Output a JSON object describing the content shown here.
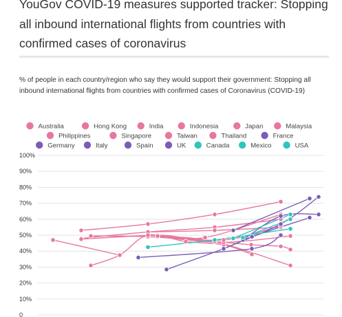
{
  "page": {
    "title": "YouGov COVID-19 measures supported tracker: Stopping all inbound international flights from countries with confirmed cases of coronavirus",
    "description": "% of people in each country/region who say they would support their government: Stopping all inbound international flights from countries with confirmed cases of Coronavirus (COVID-19)"
  },
  "chart_data": {
    "type": "line",
    "ylim": [
      0,
      100
    ],
    "y_ticks": [
      {
        "value": 100,
        "label": "100%"
      },
      {
        "value": 90,
        "label": "90%"
      },
      {
        "value": 80,
        "label": "80%"
      },
      {
        "value": 70,
        "label": "70%"
      },
      {
        "value": 60,
        "label": "60%"
      },
      {
        "value": 50,
        "label": "50%"
      },
      {
        "value": 40,
        "label": "40%"
      },
      {
        "value": 30,
        "label": "30%"
      },
      {
        "value": 20,
        "label": "20%"
      },
      {
        "value": 10,
        "label": "10%"
      },
      {
        "value": 0,
        "label": "0"
      }
    ],
    "grid": true,
    "legend_position": "top",
    "series": [
      {
        "name": "Australia",
        "color": "#e8779f",
        "points": [
          [
            118,
            53
          ],
          [
            215,
            57
          ],
          [
            312,
            63
          ],
          [
            408,
            71
          ]
        ]
      },
      {
        "name": "Hong Kong",
        "color": "#e8779f",
        "points": [
          [
            132,
            49.5
          ],
          [
            215,
            49
          ],
          [
            312,
            46
          ],
          [
            365,
            44
          ],
          [
            408,
            43
          ],
          [
            422,
            41
          ]
        ]
      },
      {
        "name": "India",
        "color": "#e8779f",
        "points": [
          [
            118,
            48
          ],
          [
            215,
            52
          ],
          [
            312,
            55
          ],
          [
            408,
            60
          ]
        ]
      },
      {
        "name": "Indonesia",
        "color": "#e8779f",
        "points": [
          [
            132,
            31
          ],
          [
            174,
            37.5
          ],
          [
            215,
            50
          ],
          [
            270,
            46
          ],
          [
            325,
            44
          ],
          [
            366,
            38
          ]
        ]
      },
      {
        "name": "Japan",
        "color": "#e8779f",
        "points": [
          [
            215,
            52
          ],
          [
            312,
            53
          ],
          [
            408,
            55
          ]
        ]
      },
      {
        "name": "Malaysia",
        "color": "#e8779f",
        "points": [
          [
            118,
            47.5
          ],
          [
            229,
            50
          ],
          [
            298,
            48.5
          ],
          [
            408,
            63
          ]
        ]
      },
      {
        "name": "Philippines",
        "color": "#e8779f",
        "points": [
          [
            229,
            49
          ],
          [
            325,
            45.5
          ],
          [
            422,
            49.5
          ]
        ]
      },
      {
        "name": "Singapore",
        "color": "#e8779f",
        "points": [
          [
            77,
            47
          ],
          [
            174,
            37.5
          ]
        ]
      },
      {
        "name": "Taiwan",
        "color": "#e8779f",
        "points": [
          [
            229,
            49.5
          ],
          [
            312,
            46
          ],
          [
            422,
            31
          ]
        ]
      },
      {
        "name": "Thailand",
        "color": "#e8779f",
        "points": [
          [
            215,
            50
          ],
          [
            325,
            47
          ],
          [
            408,
            56
          ]
        ]
      },
      {
        "name": "France",
        "color": "#7b5cb8",
        "points": [
          [
            339,
            53
          ],
          [
            450,
            73
          ]
        ]
      },
      {
        "name": "Germany",
        "color": "#7b5cb8",
        "points": [
          [
            325,
            41.5
          ],
          [
            408,
            57
          ],
          [
            463,
            74
          ]
        ]
      },
      {
        "name": "Italy",
        "color": "#7b5cb8",
        "points": [
          [
            242,
            28.5
          ],
          [
            325,
            41.5
          ],
          [
            366,
            49
          ],
          [
            450,
            61
          ]
        ]
      },
      {
        "name": "Spain",
        "color": "#7b5cb8",
        "points": [
          [
            353,
            47
          ],
          [
            408,
            62
          ],
          [
            463,
            63
          ]
        ]
      },
      {
        "name": "UK",
        "color": "#7b5cb8",
        "points": [
          [
            201,
            36
          ],
          [
            366,
            41.5
          ],
          [
            408,
            50
          ]
        ]
      },
      {
        "name": "Canada",
        "color": "#2fc4c0",
        "points": [
          [
            215,
            42.5
          ],
          [
            312,
            47
          ],
          [
            422,
            54
          ]
        ]
      },
      {
        "name": "Mexico",
        "color": "#2fc4c0",
        "points": [
          [
            339,
            48
          ],
          [
            422,
            63
          ]
        ]
      },
      {
        "name": "USA",
        "color": "#2fc4c0",
        "points": [
          [
            353,
            48.5
          ],
          [
            422,
            60
          ]
        ]
      }
    ]
  }
}
